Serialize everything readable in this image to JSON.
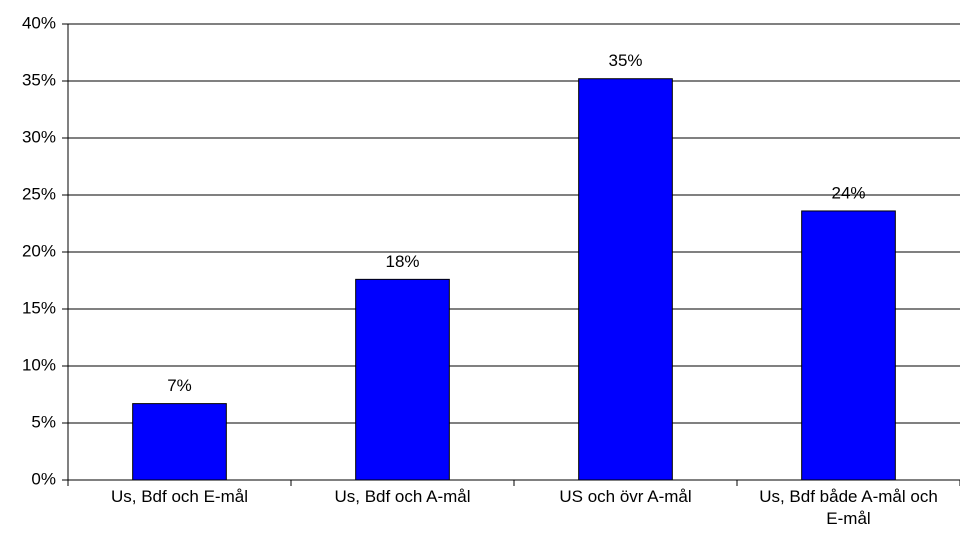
{
  "chart_data": {
    "type": "bar",
    "categories": [
      "Us, Bdf och E-mål",
      "Us, Bdf och A-mål",
      "US och övr A-mål",
      "Us, Bdf både A-mål och E-mål"
    ],
    "values": [
      6.7,
      17.6,
      35.2,
      23.6
    ],
    "value_labels": [
      "7%",
      "18%",
      "35%",
      "24%"
    ],
    "color": "#0000ff",
    "ylim": [
      0,
      40
    ],
    "yticks": [
      {
        "value": 0,
        "label": "0%"
      },
      {
        "value": 5,
        "label": "5%"
      },
      {
        "value": 10,
        "label": "10%"
      },
      {
        "value": 15,
        "label": "15%"
      },
      {
        "value": 20,
        "label": "20%"
      },
      {
        "value": 25,
        "label": "25%"
      },
      {
        "value": 30,
        "label": "30%"
      },
      {
        "value": 35,
        "label": "35%"
      },
      {
        "value": 40,
        "label": "40%"
      }
    ],
    "grid": true
  }
}
